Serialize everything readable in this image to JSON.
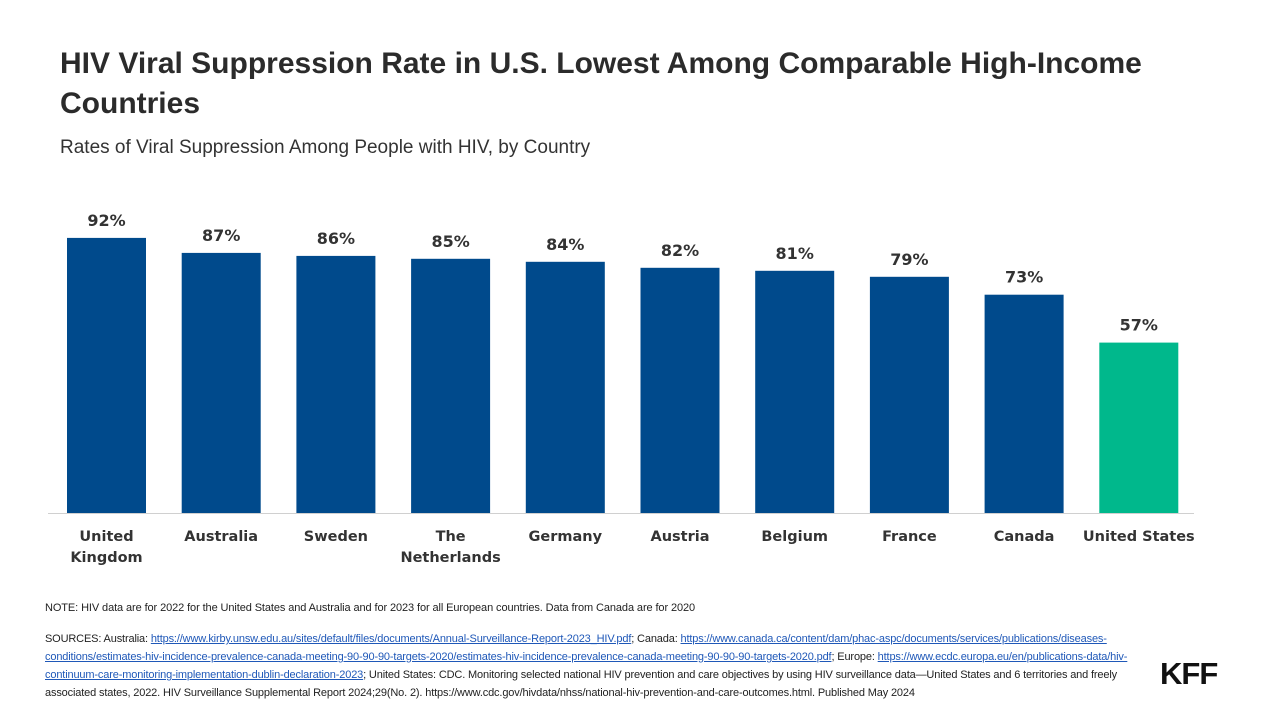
{
  "header": {
    "title": "HIV Viral Suppression Rate in U.S. Lowest Among Comparable High-Income Countries",
    "subtitle": "Rates of Viral Suppression Among People with HIV, by Country"
  },
  "chart_data": {
    "type": "bar",
    "title": "HIV Viral Suppression Rate in U.S. Lowest Among Comparable High-Income Countries",
    "subtitle": "Rates of Viral Suppression Among People with HIV, by Country",
    "categories": [
      [
        "United",
        "Kingdom"
      ],
      [
        "Australia"
      ],
      [
        "Sweden"
      ],
      [
        "The",
        "Netherlands"
      ],
      [
        "Germany"
      ],
      [
        "Austria"
      ],
      [
        "Belgium"
      ],
      [
        "France"
      ],
      [
        "Canada"
      ],
      [
        "United States"
      ]
    ],
    "values": [
      92,
      87,
      86,
      85,
      84,
      82,
      81,
      79,
      73,
      57
    ],
    "value_labels": [
      "92%",
      "87%",
      "86%",
      "85%",
      "84%",
      "82%",
      "81%",
      "79%",
      "73%",
      "57%"
    ],
    "colors": [
      "#004a8c",
      "#004a8c",
      "#004a8c",
      "#004a8c",
      "#004a8c",
      "#004a8c",
      "#004a8c",
      "#004a8c",
      "#004a8c",
      "#00b88c"
    ],
    "ylim": [
      0,
      100
    ],
    "grid": false,
    "legend": "none",
    "xlabel": "",
    "ylabel": ""
  },
  "footer": {
    "note": "NOTE: HIV data are for 2022 for the United States and Australia and for 2023 for all European countries. Data from Canada are for 2020",
    "sources": {
      "lead": "SOURCES: Australia: ",
      "link1": "https://www.kirby.unsw.edu.au/sites/default/files/documents/Annual-Surveillance-Report-2023_HIV.pdf",
      "mid1": "; Canada: ",
      "link2": "https://www.canada.ca/content/dam/phac-aspc/documents/services/publications/diseases-conditions/estimates-hiv-incidence-prevalence-canada-meeting-90-90-90-targets-2020/estimates-hiv-incidence-prevalence-canada-meeting-90-90-90-targets-2020.pdf",
      "mid2": "; Europe: ",
      "link3": "https://www.ecdc.europa.eu/en/publications-data/hiv-continuum-care-monitoring-implementation-dublin-declaration-2023",
      "tail": "; United States: CDC. Monitoring selected national HIV prevention and care objectives by using HIV surveillance data—United States and 6 territories and freely associated states, 2022. HIV Surveillance Supplemental Report 2024;29(No. 2). https://www.cdc.gov/hivdata/nhss/national-hiv-prevention-and-care-outcomes.html. Published May 2024"
    },
    "logo": "KFF"
  },
  "colors": {
    "bar": "#004a8c",
    "highlight": "#00b88c",
    "axis": "#d0d0d0",
    "link": "#1f58b8"
  }
}
